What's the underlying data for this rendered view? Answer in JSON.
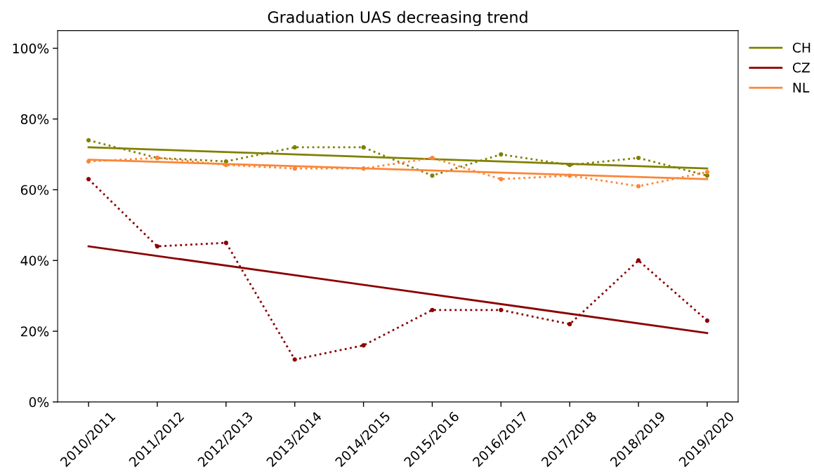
{
  "chart_data": {
    "type": "line",
    "title": "Graduation UAS decreasing trend",
    "categories": [
      "2010/2011",
      "2011/2012",
      "2012/2013",
      "2013/2014",
      "2014/2015",
      "2015/2016",
      "2016/2017",
      "2017/2018",
      "2018/2019",
      "2019/2020"
    ],
    "ylim": [
      0,
      105
    ],
    "yticks": [
      {
        "value": 0,
        "label": "0%"
      },
      {
        "value": 20,
        "label": "20%"
      },
      {
        "value": 40,
        "label": "40%"
      },
      {
        "value": 60,
        "label": "60%"
      },
      {
        "value": 80,
        "label": "80%"
      },
      {
        "value": 100,
        "label": "100%"
      }
    ],
    "legend": "top right",
    "series": [
      {
        "color": "#808000",
        "line_style": "dotted",
        "marker": "circle",
        "values": [
          74,
          69,
          68,
          72,
          72,
          64,
          70,
          67,
          69,
          64
        ]
      },
      {
        "name": "CH",
        "color": "#808000",
        "line_style": "solid",
        "marker": "none",
        "x": [
          "2010/2011",
          "2019/2020"
        ],
        "values": [
          72,
          66
        ]
      },
      {
        "color": "#8b0000",
        "line_style": "dotted",
        "marker": "circle",
        "values": [
          63,
          44,
          45,
          12,
          16,
          26,
          26,
          22,
          40,
          23
        ]
      },
      {
        "name": "CZ",
        "color": "#8b0000",
        "line_style": "solid",
        "marker": "none",
        "x": [
          "2010/2011",
          "2019/2020"
        ],
        "values": [
          44,
          19.5
        ]
      },
      {
        "color": "#fb8638",
        "line_style": "dotted",
        "marker": "circle",
        "values": [
          68,
          69,
          67,
          66,
          66,
          69,
          63,
          64,
          61,
          65
        ]
      },
      {
        "name": "NL",
        "color": "#fb8638",
        "line_style": "solid",
        "marker": "none",
        "x": [
          "2010/2011",
          "2019/2020"
        ],
        "values": [
          68.5,
          63
        ]
      }
    ]
  }
}
